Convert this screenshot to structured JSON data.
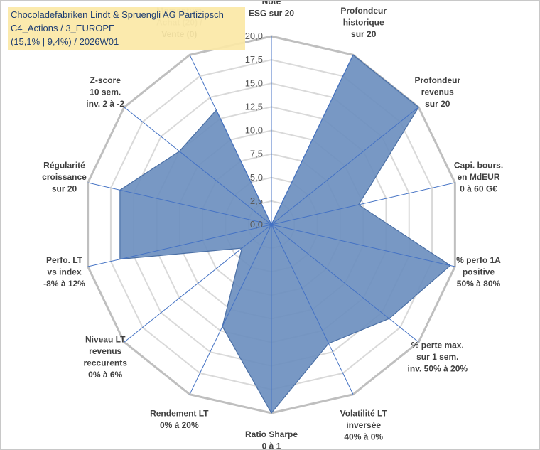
{
  "title": {
    "line1": "Chocoladefabriken Lindt & Spruengli AG Partizipsch",
    "line2": "C4_Actions / 3_EUROPE",
    "line3": "(15,1% | 9,4%) / 2026W01"
  },
  "chart_data": {
    "type": "radar",
    "range": [
      0,
      20
    ],
    "tick_step": 2.5,
    "ticks": [
      "0,0",
      "2,5",
      "5,0",
      "7,5",
      "10,0",
      "12,5",
      "15,0",
      "17,5",
      "20,0"
    ],
    "axes": [
      [
        "Note",
        "ESG sur 20"
      ],
      [
        "Profondeur",
        "historique",
        "sur 20"
      ],
      [
        "Profondeur",
        "revenus",
        "sur 20"
      ],
      [
        "Capi. bours.",
        "en MdEUR",
        "0 à 60 G€"
      ],
      [
        "% perfo 1A",
        "positive",
        "50% à 80%"
      ],
      [
        "% perte max.",
        "sur 1 sem.",
        "inv. 50% à 20%"
      ],
      [
        "Volatilité LT",
        "inversée",
        "40% à 0%"
      ],
      [
        "Ratio Sharpe",
        "0 à 1"
      ],
      [
        "Rendement LT",
        "0% à 20%"
      ],
      [
        "Niveau LT",
        "revenus",
        "reccurents",
        "0% à 6%"
      ],
      [
        "Perfo. LT",
        "vs index",
        "-8% à 12%"
      ],
      [
        "Régularité",
        "croissance",
        "sur 20"
      ],
      [
        "Z-score",
        "10 sem.",
        "inv. 2 à -2"
      ],
      [
        "Momentum",
        "Achat (20) /",
        "Vente (0)"
      ]
    ],
    "series": [
      {
        "name": "Chocoladefabriken Lindt & Spruengli AG Partizipsch",
        "values": [
          0,
          20,
          20,
          9.5,
          19.5,
          16,
          14,
          20,
          12,
          4,
          16.5,
          16.5,
          12.5,
          13.5
        ]
      }
    ],
    "colors": {
      "fill": "#6c8fbf",
      "stroke": "#4a6fa5",
      "spoke": "#4472c4",
      "grid": "#d9d9d9",
      "outer": "#bfbfbf"
    }
  }
}
